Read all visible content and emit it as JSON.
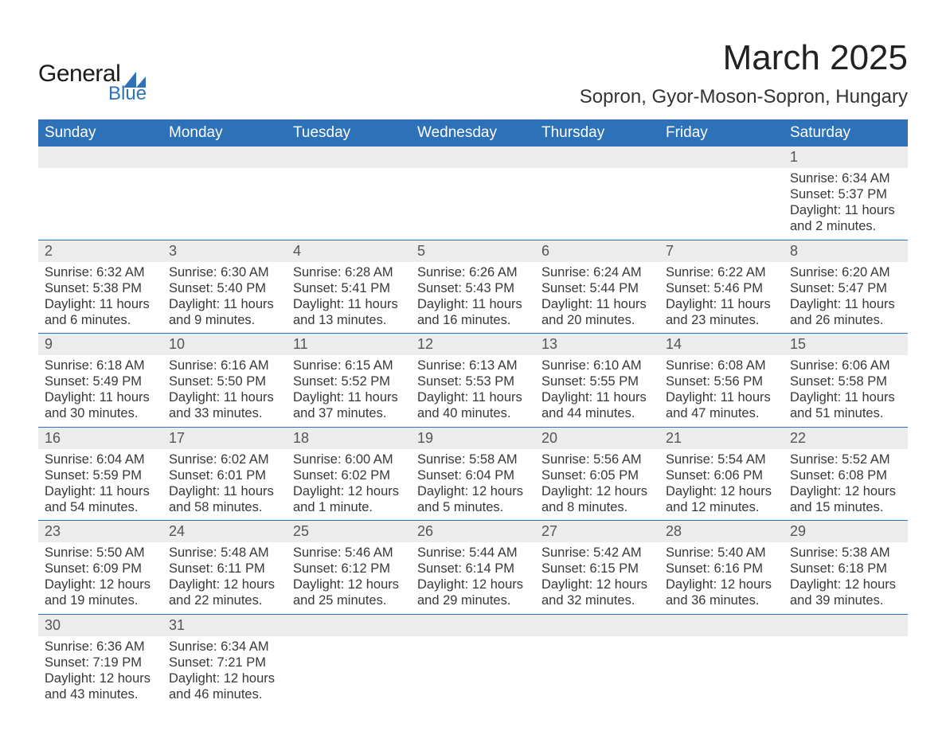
{
  "brand": {
    "name_part1": "General",
    "name_part2": "Blue",
    "accent_color": "#2d72b8"
  },
  "title": "March 2025",
  "location": "Sopron, Gyor-Moson-Sopron, Hungary",
  "weekdays": [
    "Sunday",
    "Monday",
    "Tuesday",
    "Wednesday",
    "Thursday",
    "Friday",
    "Saturday"
  ],
  "colors": {
    "header_bg": "#2d72b8",
    "header_text": "#ffffff",
    "daynum_bg": "#ececec",
    "row_divider": "#2d72b8",
    "body_text": "#383838"
  },
  "weeks": [
    [
      null,
      null,
      null,
      null,
      null,
      null,
      {
        "n": "1",
        "sr": "6:34 AM",
        "ss": "5:37 PM",
        "dl": "11 hours and 2 minutes."
      }
    ],
    [
      {
        "n": "2",
        "sr": "6:32 AM",
        "ss": "5:38 PM",
        "dl": "11 hours and 6 minutes."
      },
      {
        "n": "3",
        "sr": "6:30 AM",
        "ss": "5:40 PM",
        "dl": "11 hours and 9 minutes."
      },
      {
        "n": "4",
        "sr": "6:28 AM",
        "ss": "5:41 PM",
        "dl": "11 hours and 13 minutes."
      },
      {
        "n": "5",
        "sr": "6:26 AM",
        "ss": "5:43 PM",
        "dl": "11 hours and 16 minutes."
      },
      {
        "n": "6",
        "sr": "6:24 AM",
        "ss": "5:44 PM",
        "dl": "11 hours and 20 minutes."
      },
      {
        "n": "7",
        "sr": "6:22 AM",
        "ss": "5:46 PM",
        "dl": "11 hours and 23 minutes."
      },
      {
        "n": "8",
        "sr": "6:20 AM",
        "ss": "5:47 PM",
        "dl": "11 hours and 26 minutes."
      }
    ],
    [
      {
        "n": "9",
        "sr": "6:18 AM",
        "ss": "5:49 PM",
        "dl": "11 hours and 30 minutes."
      },
      {
        "n": "10",
        "sr": "6:16 AM",
        "ss": "5:50 PM",
        "dl": "11 hours and 33 minutes."
      },
      {
        "n": "11",
        "sr": "6:15 AM",
        "ss": "5:52 PM",
        "dl": "11 hours and 37 minutes."
      },
      {
        "n": "12",
        "sr": "6:13 AM",
        "ss": "5:53 PM",
        "dl": "11 hours and 40 minutes."
      },
      {
        "n": "13",
        "sr": "6:10 AM",
        "ss": "5:55 PM",
        "dl": "11 hours and 44 minutes."
      },
      {
        "n": "14",
        "sr": "6:08 AM",
        "ss": "5:56 PM",
        "dl": "11 hours and 47 minutes."
      },
      {
        "n": "15",
        "sr": "6:06 AM",
        "ss": "5:58 PM",
        "dl": "11 hours and 51 minutes."
      }
    ],
    [
      {
        "n": "16",
        "sr": "6:04 AM",
        "ss": "5:59 PM",
        "dl": "11 hours and 54 minutes."
      },
      {
        "n": "17",
        "sr": "6:02 AM",
        "ss": "6:01 PM",
        "dl": "11 hours and 58 minutes."
      },
      {
        "n": "18",
        "sr": "6:00 AM",
        "ss": "6:02 PM",
        "dl": "12 hours and 1 minute."
      },
      {
        "n": "19",
        "sr": "5:58 AM",
        "ss": "6:04 PM",
        "dl": "12 hours and 5 minutes."
      },
      {
        "n": "20",
        "sr": "5:56 AM",
        "ss": "6:05 PM",
        "dl": "12 hours and 8 minutes."
      },
      {
        "n": "21",
        "sr": "5:54 AM",
        "ss": "6:06 PM",
        "dl": "12 hours and 12 minutes."
      },
      {
        "n": "22",
        "sr": "5:52 AM",
        "ss": "6:08 PM",
        "dl": "12 hours and 15 minutes."
      }
    ],
    [
      {
        "n": "23",
        "sr": "5:50 AM",
        "ss": "6:09 PM",
        "dl": "12 hours and 19 minutes."
      },
      {
        "n": "24",
        "sr": "5:48 AM",
        "ss": "6:11 PM",
        "dl": "12 hours and 22 minutes."
      },
      {
        "n": "25",
        "sr": "5:46 AM",
        "ss": "6:12 PM",
        "dl": "12 hours and 25 minutes."
      },
      {
        "n": "26",
        "sr": "5:44 AM",
        "ss": "6:14 PM",
        "dl": "12 hours and 29 minutes."
      },
      {
        "n": "27",
        "sr": "5:42 AM",
        "ss": "6:15 PM",
        "dl": "12 hours and 32 minutes."
      },
      {
        "n": "28",
        "sr": "5:40 AM",
        "ss": "6:16 PM",
        "dl": "12 hours and 36 minutes."
      },
      {
        "n": "29",
        "sr": "5:38 AM",
        "ss": "6:18 PM",
        "dl": "12 hours and 39 minutes."
      }
    ],
    [
      {
        "n": "30",
        "sr": "6:36 AM",
        "ss": "7:19 PM",
        "dl": "12 hours and 43 minutes."
      },
      {
        "n": "31",
        "sr": "6:34 AM",
        "ss": "7:21 PM",
        "dl": "12 hours and 46 minutes."
      },
      null,
      null,
      null,
      null,
      null
    ]
  ],
  "labels": {
    "sunrise": "Sunrise: ",
    "sunset": "Sunset: ",
    "daylight": "Daylight: "
  }
}
